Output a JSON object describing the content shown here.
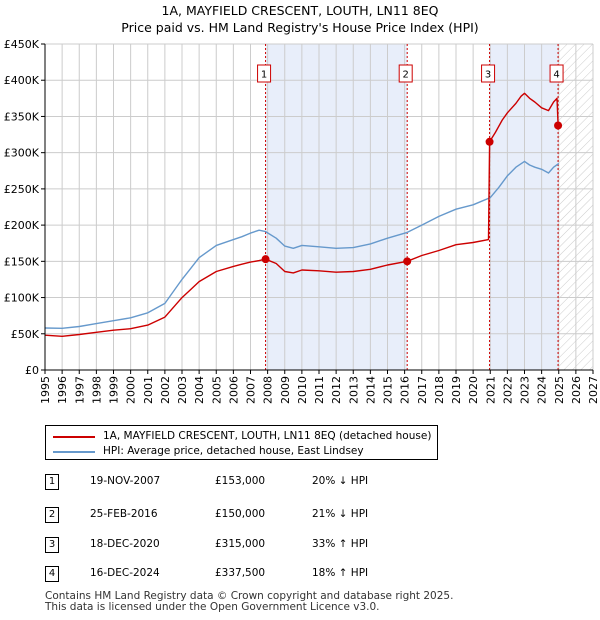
{
  "title_line1": "1A, MAYFIELD CRESCENT, LOUTH, LN11 8EQ",
  "title_line2": "Price paid vs. HM Land Registry's House Price Index (HPI)",
  "colors": {
    "property": "#cc0000",
    "hpi": "#6699cc",
    "shade": "#e8eefa",
    "grid": "#cccccc"
  },
  "legend": {
    "property_label": "1A, MAYFIELD CRESCENT, LOUTH, LN11 8EQ (detached house)",
    "hpi_label": "HPI: Average price, detached house, East Lindsey"
  },
  "sales": [
    {
      "num": "1",
      "date": "19-NOV-2007",
      "price": "£153,000",
      "hpi": "20% ↓ HPI"
    },
    {
      "num": "2",
      "date": "25-FEB-2016",
      "price": "£150,000",
      "hpi": "21% ↓ HPI"
    },
    {
      "num": "3",
      "date": "18-DEC-2020",
      "price": "£315,000",
      "hpi": "33% ↑ HPI"
    },
    {
      "num": "4",
      "date": "16-DEC-2024",
      "price": "£337,500",
      "hpi": "18% ↑ HPI"
    }
  ],
  "footer_line1": "Contains HM Land Registry data © Crown copyright and database right 2025.",
  "footer_line2": "This data is licensed under the Open Government Licence v3.0.",
  "chart_data": {
    "type": "line",
    "xlim": [
      1995,
      2027
    ],
    "ylim": [
      0,
      450000
    ],
    "x_ticks": [
      1995,
      1996,
      1997,
      1998,
      1999,
      2000,
      2001,
      2002,
      2003,
      2004,
      2005,
      2006,
      2007,
      2008,
      2009,
      2010,
      2011,
      2012,
      2013,
      2014,
      2015,
      2016,
      2017,
      2018,
      2019,
      2020,
      2021,
      2022,
      2023,
      2024,
      2025,
      2026,
      2027
    ],
    "y_ticks": [
      0,
      50000,
      100000,
      150000,
      200000,
      250000,
      300000,
      350000,
      400000,
      450000
    ],
    "y_tick_labels": [
      "£0",
      "£50K",
      "£100K",
      "£150K",
      "£200K",
      "£250K",
      "£300K",
      "£350K",
      "£400K",
      "£450K"
    ],
    "shaded_ranges": [
      [
        2007.88,
        2016.15
      ],
      [
        2020.96,
        2024.96
      ]
    ],
    "hatched_from": 2025.0,
    "series": [
      {
        "name": "1A, MAYFIELD CRESCENT, LOUTH, LN11 8EQ (detached house)",
        "points": [
          [
            1995.0,
            48000
          ],
          [
            1996.0,
            46500
          ],
          [
            1997.0,
            49000
          ],
          [
            1998.0,
            52000
          ],
          [
            1999.0,
            55000
          ],
          [
            2000.0,
            57000
          ],
          [
            2001.0,
            62000
          ],
          [
            2002.0,
            73000
          ],
          [
            2003.0,
            100000
          ],
          [
            2003.5,
            111000
          ],
          [
            2004.0,
            122000
          ],
          [
            2005.0,
            136000
          ],
          [
            2006.0,
            143000
          ],
          [
            2006.5,
            146000
          ],
          [
            2007.0,
            149000
          ],
          [
            2007.5,
            151000
          ],
          [
            2007.88,
            153000
          ],
          [
            2008.5,
            147000
          ],
          [
            2009.0,
            136000
          ],
          [
            2009.5,
            134000
          ],
          [
            2010.0,
            138000
          ],
          [
            2011.0,
            137000
          ],
          [
            2012.0,
            135000
          ],
          [
            2013.0,
            136000
          ],
          [
            2014.0,
            139000
          ],
          [
            2015.0,
            145000
          ],
          [
            2016.15,
            150000
          ],
          [
            2017.0,
            158000
          ],
          [
            2018.0,
            165000
          ],
          [
            2019.0,
            173000
          ],
          [
            2020.0,
            176000
          ],
          [
            2020.9,
            180000
          ],
          [
            2020.96,
            315000
          ],
          [
            2021.3,
            328000
          ],
          [
            2021.7,
            345000
          ],
          [
            2022.0,
            355000
          ],
          [
            2022.5,
            368000
          ],
          [
            2022.8,
            378000
          ],
          [
            2023.0,
            382000
          ],
          [
            2023.3,
            375000
          ],
          [
            2023.6,
            370000
          ],
          [
            2024.0,
            362000
          ],
          [
            2024.4,
            358000
          ],
          [
            2024.7,
            370000
          ],
          [
            2024.9,
            375000
          ],
          [
            2024.96,
            337500
          ]
        ]
      },
      {
        "name": "HPI: Average price, detached house, East Lindsey",
        "points": [
          [
            1995.0,
            58000
          ],
          [
            1996.0,
            57500
          ],
          [
            1997.0,
            60000
          ],
          [
            1998.0,
            64000
          ],
          [
            1999.0,
            68000
          ],
          [
            2000.0,
            72000
          ],
          [
            2001.0,
            79000
          ],
          [
            2002.0,
            92000
          ],
          [
            2003.0,
            125000
          ],
          [
            2003.5,
            140000
          ],
          [
            2004.0,
            155000
          ],
          [
            2005.0,
            172000
          ],
          [
            2006.0,
            180000
          ],
          [
            2006.5,
            184000
          ],
          [
            2007.0,
            189000
          ],
          [
            2007.5,
            193000
          ],
          [
            2007.88,
            191000
          ],
          [
            2008.5,
            182000
          ],
          [
            2009.0,
            171000
          ],
          [
            2009.5,
            168000
          ],
          [
            2010.0,
            172000
          ],
          [
            2011.0,
            170000
          ],
          [
            2012.0,
            168000
          ],
          [
            2013.0,
            169000
          ],
          [
            2014.0,
            174000
          ],
          [
            2015.0,
            182000
          ],
          [
            2016.15,
            190000
          ],
          [
            2017.0,
            200000
          ],
          [
            2018.0,
            212000
          ],
          [
            2019.0,
            222000
          ],
          [
            2020.0,
            228000
          ],
          [
            2020.5,
            233000
          ],
          [
            2021.0,
            238000
          ],
          [
            2021.5,
            252000
          ],
          [
            2022.0,
            268000
          ],
          [
            2022.5,
            280000
          ],
          [
            2023.0,
            288000
          ],
          [
            2023.3,
            283000
          ],
          [
            2023.6,
            280000
          ],
          [
            2024.0,
            277000
          ],
          [
            2024.4,
            272000
          ],
          [
            2024.7,
            280000
          ],
          [
            2025.0,
            285000
          ]
        ]
      }
    ],
    "sale_markers": [
      {
        "label": "1",
        "x": 2007.88,
        "y": 153000
      },
      {
        "label": "2",
        "x": 2016.15,
        "y": 150000
      },
      {
        "label": "3",
        "x": 2020.96,
        "y": 315000
      },
      {
        "label": "4",
        "x": 2024.96,
        "y": 337500
      }
    ]
  }
}
